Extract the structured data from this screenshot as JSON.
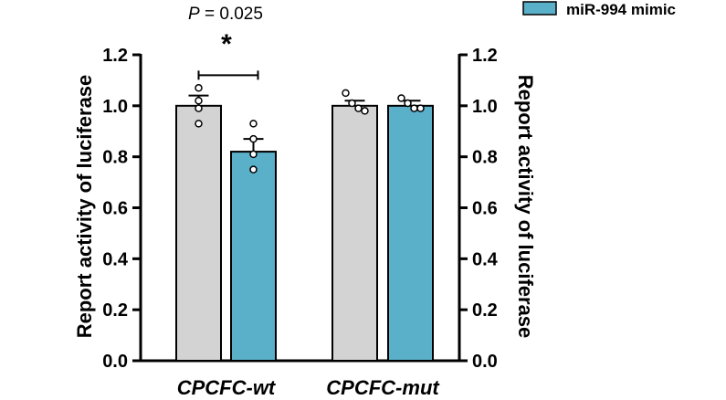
{
  "chart_data": {
    "type": "bar",
    "categories": [
      "CPCFC-wt",
      "CPCFC-mut"
    ],
    "series": [
      {
        "name": "",
        "color": "#d3d3d3",
        "values": [
          1.0,
          1.0
        ],
        "errors": [
          0.04,
          0.02
        ],
        "points": [
          [
            1.07,
            1.02,
            0.99,
            0.93
          ],
          [
            1.05,
            1.01,
            0.99,
            0.98
          ]
        ]
      },
      {
        "name": "miR-994 mimic",
        "color": "#5aafc9",
        "values": [
          0.82,
          1.0
        ],
        "errors": [
          0.05,
          0.02
        ],
        "points": [
          [
            0.93,
            0.87,
            0.81,
            0.75
          ],
          [
            1.03,
            1.01,
            0.99,
            0.99
          ]
        ]
      }
    ],
    "ylabel": "Report activity of luciferase",
    "y2label": "Report activity of luciferase",
    "ylim": [
      0,
      1.2
    ],
    "yticks": [
      "0.0",
      "0.2",
      "0.4",
      "0.6",
      "0.8",
      "1.0",
      "1.2"
    ],
    "legend": {
      "label": "miR-994 mimic",
      "position": "top-right"
    },
    "annotation": {
      "p_prefix": "P",
      "p_value": " = 0.025",
      "significance": "*",
      "value_level": 1.12
    }
  }
}
